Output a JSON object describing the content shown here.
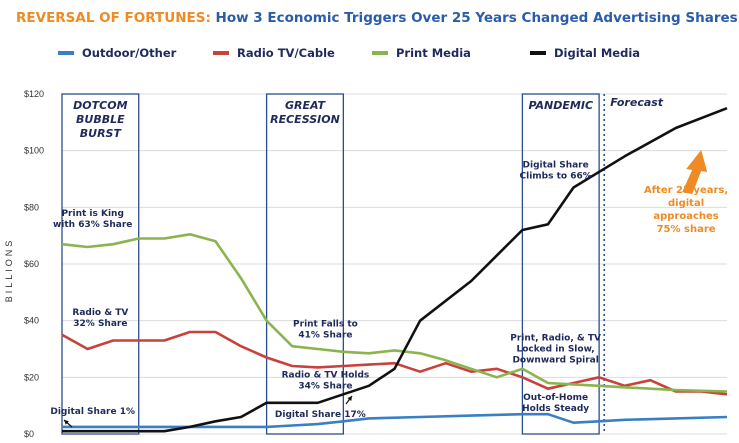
{
  "chart_data": {
    "type": "line",
    "title_highlight": "REVERSAL OF FORTUNES:",
    "title_rest": " How 3 Economic Triggers Over 25 Years Changed Advertising Shares",
    "ylabel": "BILLIONS",
    "yticks": [
      "$0",
      "$20",
      "$40",
      "$60",
      "$80",
      "$100",
      "$120"
    ],
    "ylim": [
      0,
      120
    ],
    "xlim": [
      2000,
      2026
    ],
    "grid": true,
    "legend_position": "top",
    "colors": {
      "title_highlight": "#f08a24",
      "title_rest": "#2a5caa",
      "outdoor": "#3a7fc4",
      "radio_tv": "#c8413a",
      "print": "#8bb44e",
      "digital": "#111111",
      "period_box": "#2a4d8f",
      "annotation_orange": "#f08a24"
    },
    "series": [
      {
        "name": "Outdoor/Other",
        "key": "outdoor",
        "x": [
          2000,
          2002,
          2004,
          2006,
          2008,
          2009,
          2010,
          2011,
          2012,
          2014,
          2016,
          2018,
          2019,
          2020,
          2021,
          2022,
          2024,
          2026
        ],
        "values": [
          2.5,
          2.5,
          2.5,
          2.5,
          2.5,
          3,
          3.5,
          4.5,
          5.5,
          6,
          6.5,
          7,
          7,
          4,
          4.5,
          5,
          5.5,
          6
        ]
      },
      {
        "name": "Radio TV/Cable",
        "key": "radio_tv",
        "x": [
          2000,
          2001,
          2002,
          2003,
          2004,
          2005,
          2006,
          2007,
          2008,
          2009,
          2010,
          2011,
          2012,
          2013,
          2014,
          2015,
          2016,
          2017,
          2018,
          2019,
          2020,
          2021,
          2022,
          2023,
          2024,
          2025,
          2026
        ],
        "values": [
          35,
          30,
          33,
          33,
          33,
          36,
          36,
          31,
          27,
          24,
          23.5,
          24,
          24.5,
          25,
          22,
          25,
          22,
          23,
          20,
          16,
          18,
          20,
          17,
          19,
          15,
          15,
          14
        ]
      },
      {
        "name": "Print Media",
        "key": "print",
        "x": [
          2000,
          2001,
          2002,
          2003,
          2004,
          2005,
          2006,
          2007,
          2008,
          2009,
          2010,
          2011,
          2012,
          2013,
          2014,
          2015,
          2016,
          2017,
          2018,
          2019,
          2020,
          2021,
          2022,
          2024,
          2026
        ],
        "values": [
          67,
          66,
          67,
          69,
          69,
          70.5,
          68,
          55,
          40,
          31,
          30,
          29,
          28.5,
          29.5,
          28.5,
          26,
          23,
          20,
          23,
          18,
          17.5,
          17,
          16.5,
          15.5,
          15
        ]
      },
      {
        "name": "Digital Media",
        "key": "digital",
        "x": [
          2000,
          2003,
          2004,
          2005,
          2006,
          2007,
          2008,
          2009,
          2010,
          2011,
          2012,
          2013,
          2014,
          2016,
          2018,
          2019,
          2020,
          2022,
          2024,
          2026
        ],
        "values": [
          1,
          1,
          1,
          2.5,
          4.5,
          6,
          11,
          11,
          11,
          14,
          17,
          23,
          40,
          54,
          72,
          74,
          87,
          98,
          108,
          115
        ]
      }
    ],
    "periods": [
      {
        "label": [
          "DOTCOM",
          "BUBBLE",
          "BURST"
        ],
        "x0": 2000,
        "x1": 2003
      },
      {
        "label": [
          "GREAT",
          "RECESSION"
        ],
        "x0": 2008,
        "x1": 2011
      },
      {
        "label": [
          "PANDEMIC"
        ],
        "x0": 2018,
        "x1": 2021
      }
    ],
    "forecast": {
      "label": "Forecast",
      "x": 2021.2
    },
    "annotations": [
      {
        "lines": [
          "Print is King",
          "with 63% Share"
        ],
        "x": 2001.2,
        "y": 77,
        "color": "navy"
      },
      {
        "lines": [
          "Radio & TV",
          "32% Share"
        ],
        "x": 2001.5,
        "y": 42,
        "color": "navy"
      },
      {
        "lines": [
          "Digital Share 1%"
        ],
        "x": 2001.2,
        "y": 7,
        "color": "navy"
      },
      {
        "lines": [
          "Print Falls to",
          "41% Share"
        ],
        "x": 2010.3,
        "y": 38,
        "color": "navy"
      },
      {
        "lines": [
          "Radio & TV Holds",
          "34% Share"
        ],
        "x": 2010.3,
        "y": 20,
        "color": "navy"
      },
      {
        "lines": [
          "Digital Share 17%"
        ],
        "x": 2010.1,
        "y": 6,
        "color": "navy"
      },
      {
        "lines": [
          "Digital Share",
          "Climbs to 66%"
        ],
        "x": 2019.3,
        "y": 94,
        "color": "navy"
      },
      {
        "lines": [
          "Print, Radio, & TV",
          "Locked in Slow,",
          "Downward Spiral"
        ],
        "x": 2019.3,
        "y": 33,
        "color": "navy"
      },
      {
        "lines": [
          "Out-of-Home",
          "Holds Steady"
        ],
        "x": 2019.3,
        "y": 12,
        "color": "navy"
      },
      {
        "lines": [
          "After 25 years,",
          "digital",
          "approaches",
          "75% share"
        ],
        "x": 2024.4,
        "y": 85,
        "color": "orange"
      }
    ]
  }
}
